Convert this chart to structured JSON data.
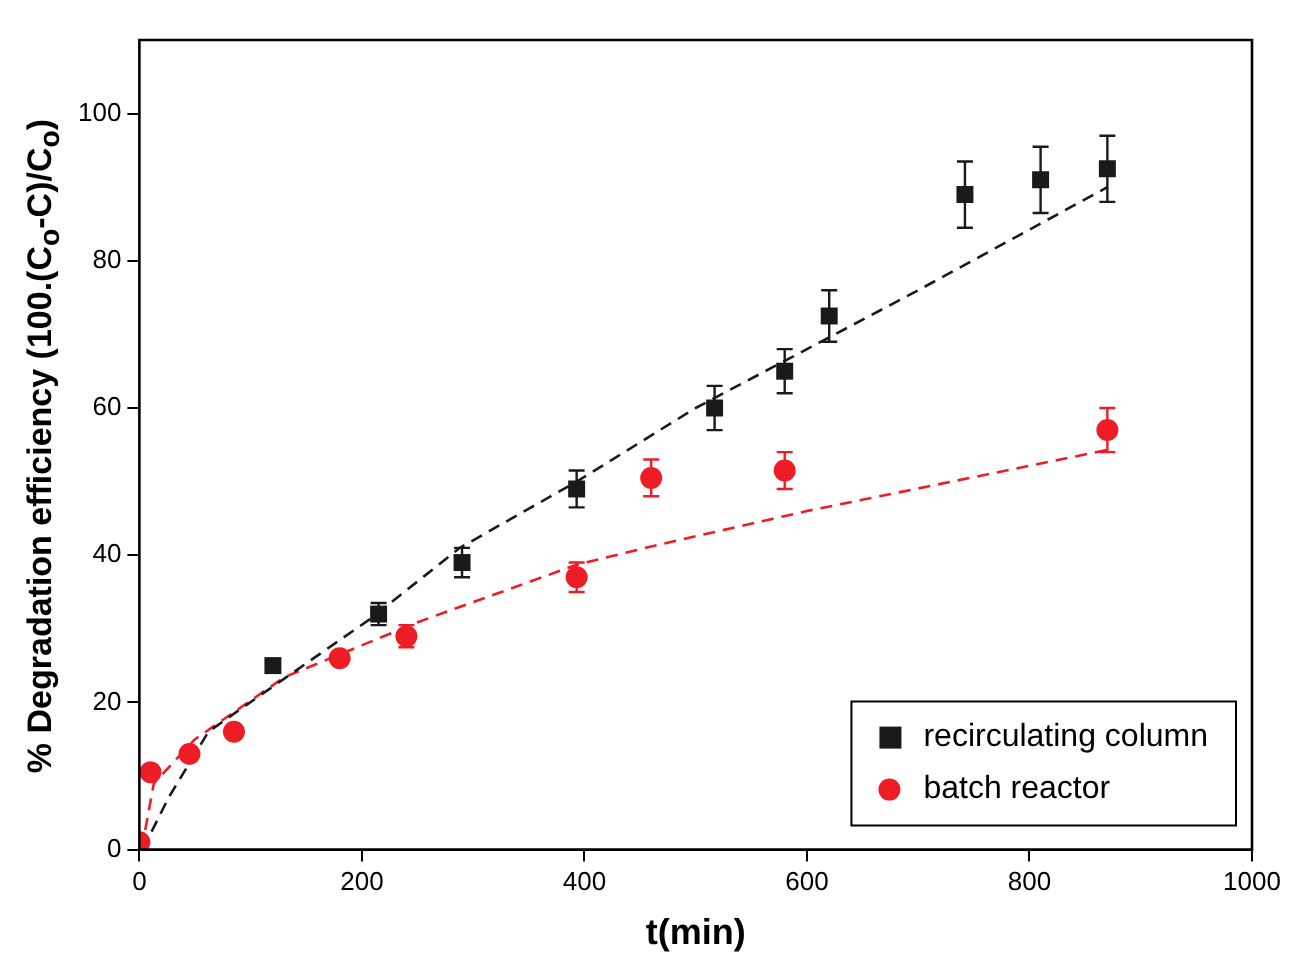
{
  "chart_data": {
    "type": "scatter",
    "xlabel": "t(min)",
    "ylabel": "% Degradation efficiency (100.(C$_{o}$-C)/C$_{o}$)",
    "xlim": [
      0,
      1000
    ],
    "xticks": [
      0,
      200,
      400,
      600,
      800,
      1000
    ],
    "ylim": [
      0,
      110
    ],
    "yticks": [
      0,
      20,
      40,
      60,
      80,
      100
    ],
    "grid": false,
    "legend": "bottom right",
    "series": [
      {
        "name": "recirculating column",
        "color": "#1a1a1a",
        "marker": "square",
        "x": [
          120,
          215,
          290,
          393,
          517,
          580,
          620,
          742,
          810,
          870
        ],
        "values": [
          25,
          32,
          39,
          49,
          60,
          65,
          72.5,
          89,
          91,
          92.5
        ],
        "errors": [
          null,
          1.5,
          2,
          2.5,
          3,
          3,
          3.5,
          4.5,
          4.5,
          4.5
        ]
      },
      {
        "name": "batch reactor",
        "color": "#ee1c25",
        "marker": "circle",
        "x": [
          0,
          10,
          45,
          85,
          180,
          240,
          393,
          460,
          580,
          870
        ],
        "values": [
          1,
          10.5,
          13,
          16,
          26,
          29,
          37,
          50.5,
          51.5,
          57
        ],
        "errors": [
          null,
          null,
          null,
          null,
          null,
          1.5,
          2,
          2.5,
          2.5,
          3
        ]
      },
      {
        "type": "line",
        "color": "#1a1a1a",
        "line_style": "dashed",
        "marker": "none",
        "x": [
          3,
          26,
          62,
          90,
          209,
          288,
          393,
          500,
          600,
          700,
          870
        ],
        "values": [
          0,
          7,
          16,
          19,
          31.5,
          41,
          50,
          60,
          68,
          76,
          90
        ]
      },
      {
        "type": "line",
        "color": "#ee1c25",
        "line_style": "dashed",
        "marker": "none",
        "x": [
          2,
          13,
          50,
          130,
          252,
          393,
          466,
          600,
          870
        ],
        "values": [
          0,
          9,
          15,
          23.4,
          31,
          38.7,
          41.4,
          46,
          54.3
        ]
      }
    ]
  }
}
